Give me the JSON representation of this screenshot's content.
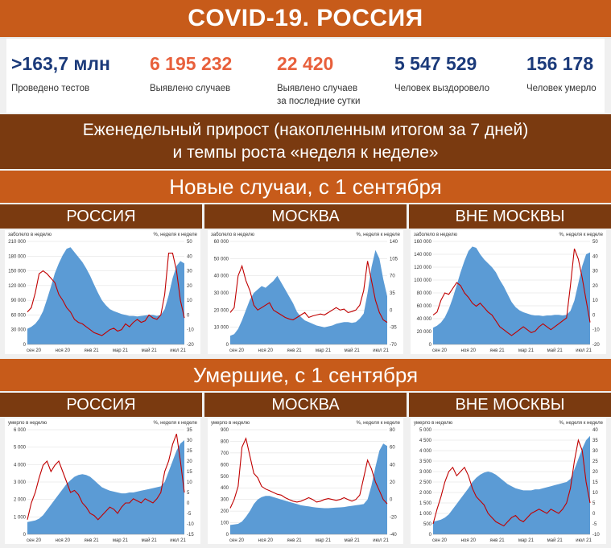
{
  "header": {
    "title": "COVID-19. РОССИЯ"
  },
  "stats": [
    {
      "value": ">163,7 млн",
      "label": "Проведено тестов",
      "color": "#1b3a7a"
    },
    {
      "value": "6 195 232",
      "label": "Выявлено случаев",
      "color": "#e8603c"
    },
    {
      "value": "22 420",
      "label": "Выявлено случаев",
      "label2": "за последние сутки",
      "color": "#e8603c"
    },
    {
      "value": "5 547 529",
      "label": "Человек выздоровело",
      "color": "#1b3a7a"
    },
    {
      "value": "156 178",
      "label": "Человек умерло",
      "color": "#1b3a7a"
    }
  ],
  "subtitle": {
    "line1": "Еженедельный прирост (накопленным итогом за 7 дней)",
    "line2": "и темпы роста «неделя к неделе»"
  },
  "sections": {
    "new_cases": "Новые случаи, с 1 сентября",
    "deaths": "Умершие, с 1 сентября"
  },
  "regions": [
    "РОССИЯ",
    "МОСКВА",
    "ВНЕ МОСКВЫ"
  ],
  "colors": {
    "area": "#5b9bd5",
    "line": "#c00000",
    "band_orange": "#c75b1a",
    "band_brown": "#7a3a10"
  },
  "chart_data": [
    {
      "type": "area",
      "section": "new_cases",
      "region": "РОССИЯ",
      "left_label": "заболело в неделю",
      "right_label": "%, неделя к неделе",
      "x_labels": [
        "сен 20",
        "ноя 20",
        "янв 21",
        "мар 21",
        "май 21",
        "июл 21"
      ],
      "left_ticks": [
        "0",
        "30 000",
        "60 000",
        "90 000",
        "120 000",
        "150 000",
        "180 000",
        "210 000"
      ],
      "right_ticks": [
        "-20",
        "-10",
        "0",
        "10",
        "20",
        "30",
        "40",
        "50"
      ],
      "ylim_left": [
        0,
        210000
      ],
      "ylim_right": [
        -20,
        50
      ],
      "series": [
        {
          "name": "заболело в неделю",
          "axis": "left",
          "values": [
            32000,
            36000,
            42000,
            52000,
            68000,
            92000,
            118000,
            145000,
            165000,
            182000,
            195000,
            198000,
            188000,
            178000,
            168000,
            155000,
            140000,
            122000,
            105000,
            90000,
            80000,
            72000,
            68000,
            65000,
            62000,
            60000,
            58000,
            58000,
            57000,
            58000,
            59000,
            60000,
            60000,
            58000,
            60000,
            72000,
            100000,
            135000,
            160000,
            170000,
            165000
          ]
        },
        {
          "name": "%, неделя к неделе",
          "axis": "right",
          "values": [
            2,
            5,
            15,
            28,
            30,
            28,
            25,
            22,
            14,
            10,
            5,
            2,
            -3,
            -5,
            -6,
            -8,
            -10,
            -12,
            -13,
            -14,
            -12,
            -10,
            -9,
            -11,
            -10,
            -6,
            -8,
            -5,
            -3,
            -5,
            -4,
            0,
            -2,
            -3,
            0,
            14,
            42,
            42,
            30,
            10,
            -2
          ]
        }
      ]
    },
    {
      "type": "area",
      "section": "new_cases",
      "region": "МОСКВА",
      "left_label": "заболело в неделю",
      "right_label": "%, неделя к неделе",
      "x_labels": [
        "сен 20",
        "ноя 20",
        "янв 21",
        "мар 21",
        "май 21",
        "июл 21"
      ],
      "left_ticks": [
        "0",
        "10 000",
        "20 000",
        "30 000",
        "40 000",
        "50 000",
        "60 000"
      ],
      "right_ticks": [
        "-70",
        "-35",
        "0",
        "35",
        "70",
        "105",
        "140"
      ],
      "ylim_left": [
        0,
        60000
      ],
      "ylim_right": [
        -70,
        140
      ],
      "series": [
        {
          "name": "заболело в неделю",
          "axis": "left",
          "values": [
            5000,
            6000,
            9000,
            14000,
            20000,
            26000,
            30000,
            32000,
            34000,
            33000,
            35000,
            37000,
            40000,
            36000,
            32000,
            28000,
            24000,
            19000,
            16000,
            14000,
            13000,
            12000,
            11000,
            10500,
            10000,
            10500,
            11000,
            12000,
            12500,
            13000,
            13000,
            12500,
            13000,
            15000,
            18000,
            30000,
            45000,
            55000,
            50000,
            38000,
            28000
          ]
        },
        {
          "name": "%, неделя к неделе",
          "axis": "right",
          "values": [
            -5,
            5,
            70,
            90,
            60,
            40,
            10,
            0,
            5,
            10,
            15,
            0,
            -5,
            -10,
            -15,
            -18,
            -20,
            -15,
            -10,
            -5,
            -15,
            -12,
            -10,
            -8,
            -10,
            -5,
            0,
            5,
            0,
            2,
            -5,
            -3,
            0,
            10,
            40,
            100,
            60,
            20,
            -5,
            -20,
            -25
          ]
        }
      ]
    },
    {
      "type": "area",
      "section": "new_cases",
      "region": "ВНЕ МОСКВЫ",
      "left_label": "заболело в неделю",
      "right_label": "%, неделя к неделе",
      "x_labels": [
        "сен 20",
        "ноя 20",
        "янв 21",
        "мар 21",
        "май 21",
        "июл 21"
      ],
      "left_ticks": [
        "0",
        "20 000",
        "40 000",
        "60 000",
        "80 000",
        "100 000",
        "120 000",
        "140 000",
        "160 000"
      ],
      "right_ticks": [
        "-20",
        "-10",
        "0",
        "10",
        "20",
        "30",
        "40",
        "50"
      ],
      "ylim_left": [
        0,
        160000
      ],
      "ylim_right": [
        -20,
        50
      ],
      "series": [
        {
          "name": "заболело в неделю",
          "axis": "left",
          "values": [
            26000,
            29000,
            34000,
            42000,
            55000,
            72000,
            92000,
            112000,
            130000,
            145000,
            152000,
            150000,
            140000,
            132000,
            126000,
            120000,
            112000,
            100000,
            90000,
            78000,
            66000,
            58000,
            53000,
            50000,
            48000,
            46000,
            45000,
            45000,
            44000,
            45000,
            45000,
            46000,
            46000,
            45000,
            46000,
            52000,
            68000,
            95000,
            122000,
            140000,
            143000
          ]
        },
        {
          "name": "%, неделя к неделе",
          "axis": "right",
          "values": [
            0,
            2,
            10,
            15,
            14,
            18,
            22,
            20,
            15,
            12,
            8,
            6,
            8,
            5,
            2,
            0,
            -4,
            -8,
            -10,
            -12,
            -14,
            -12,
            -10,
            -8,
            -10,
            -12,
            -11,
            -8,
            -6,
            -8,
            -10,
            -8,
            -6,
            -4,
            -2,
            20,
            45,
            38,
            25,
            10,
            -5
          ]
        }
      ]
    },
    {
      "type": "area",
      "section": "deaths",
      "region": "РОССИЯ",
      "left_label": "умерло в неделю",
      "right_label": "%, неделя к неделе",
      "x_labels": [
        "сен 20",
        "ноя 20",
        "янв 21",
        "мар 21",
        "май 21",
        "июл 21"
      ],
      "left_ticks": [
        "0",
        "1 000",
        "2 000",
        "3 000",
        "4 000",
        "5 000",
        "6 000"
      ],
      "right_ticks": [
        "-15",
        "-10",
        "-5",
        "0",
        "5",
        "10",
        "15",
        "20",
        "25",
        "30",
        "35"
      ],
      "ylim_left": [
        0,
        6000
      ],
      "ylim_right": [
        -15,
        35
      ],
      "series": [
        {
          "name": "умерло в неделю",
          "axis": "left",
          "values": [
            700,
            750,
            800,
            900,
            1100,
            1400,
            1700,
            2000,
            2300,
            2600,
            2900,
            3100,
            3300,
            3400,
            3450,
            3400,
            3300,
            3100,
            2900,
            2700,
            2600,
            2500,
            2450,
            2400,
            2350,
            2350,
            2400,
            2400,
            2450,
            2500,
            2550,
            2600,
            2650,
            2700,
            2750,
            3000,
            3600,
            4200,
            4800,
            5200,
            5400
          ]
        },
        {
          "name": "%, неделя к неделе",
          "axis": "right",
          "values": [
            -8,
            0,
            5,
            12,
            18,
            20,
            15,
            18,
            20,
            15,
            10,
            5,
            6,
            4,
            0,
            -2,
            -5,
            -6,
            -8,
            -6,
            -4,
            -2,
            -3,
            -5,
            -2,
            0,
            0,
            2,
            1,
            0,
            2,
            1,
            0,
            2,
            5,
            15,
            20,
            28,
            33,
            20,
            5
          ]
        }
      ]
    },
    {
      "type": "area",
      "section": "deaths",
      "region": "МОСКВА",
      "left_label": "умерло в неделю",
      "right_label": "%, неделя к неделе",
      "x_labels": [
        "сен 20",
        "ноя 20",
        "янв 21",
        "мар 21",
        "май 21",
        "июл 21"
      ],
      "left_ticks": [
        "0",
        "100",
        "200",
        "300",
        "400",
        "500",
        "600",
        "700",
        "800",
        "900"
      ],
      "right_ticks": [
        "-40",
        "-20",
        "0",
        "20",
        "40",
        "60",
        "80"
      ],
      "ylim_left": [
        0,
        900
      ],
      "ylim_right": [
        -40,
        80
      ],
      "series": [
        {
          "name": "умерло в неделю",
          "axis": "left",
          "values": [
            80,
            85,
            90,
            110,
            150,
            200,
            260,
            300,
            320,
            330,
            330,
            320,
            310,
            300,
            290,
            280,
            270,
            260,
            250,
            245,
            240,
            235,
            230,
            228,
            225,
            225,
            228,
            230,
            232,
            235,
            240,
            245,
            250,
            255,
            260,
            300,
            420,
            580,
            720,
            780,
            760
          ]
        },
        {
          "name": "%, неделя к неделе",
          "axis": "right",
          "values": [
            -10,
            0,
            15,
            60,
            70,
            50,
            30,
            25,
            15,
            12,
            10,
            8,
            6,
            5,
            2,
            0,
            -2,
            -3,
            -2,
            0,
            2,
            0,
            -3,
            -2,
            0,
            1,
            0,
            -1,
            0,
            2,
            0,
            -2,
            0,
            5,
            25,
            45,
            35,
            20,
            10,
            0,
            -5
          ]
        }
      ]
    },
    {
      "type": "area",
      "section": "deaths",
      "region": "ВНЕ МОСКВЫ",
      "left_label": "умерло в неделю",
      "right_label": "%, неделя к неделе",
      "x_labels": [
        "сен 20",
        "ноя 20",
        "янв 21",
        "мар 21",
        "май 21",
        "июл 21"
      ],
      "left_ticks": [
        "0",
        "500",
        "1 000",
        "1 500",
        "2 000",
        "2 500",
        "3 000",
        "3 500",
        "4 000",
        "4 500",
        "5 000"
      ],
      "right_ticks": [
        "-10",
        "-5",
        "0",
        "5",
        "10",
        "15",
        "20",
        "25",
        "30",
        "35",
        "40"
      ],
      "ylim_left": [
        0,
        5000
      ],
      "ylim_right": [
        -10,
        40
      ],
      "series": [
        {
          "name": "умерло в неделю",
          "axis": "left",
          "values": [
            600,
            650,
            700,
            800,
            950,
            1200,
            1450,
            1700,
            1950,
            2200,
            2500,
            2700,
            2850,
            2950,
            3000,
            2950,
            2850,
            2700,
            2550,
            2400,
            2300,
            2200,
            2150,
            2100,
            2100,
            2100,
            2150,
            2150,
            2200,
            2250,
            2300,
            2350,
            2400,
            2450,
            2500,
            2650,
            3100,
            3600,
            4100,
            4500,
            4700
          ]
        },
        {
          "name": "%, неделя к неделе",
          "axis": "right",
          "values": [
            -5,
            2,
            8,
            15,
            20,
            22,
            18,
            20,
            22,
            18,
            12,
            8,
            6,
            4,
            0,
            -2,
            -4,
            -5,
            -6,
            -4,
            -2,
            -1,
            -3,
            -4,
            -2,
            0,
            1,
            2,
            1,
            0,
            2,
            1,
            0,
            2,
            5,
            12,
            25,
            35,
            30,
            15,
            5
          ]
        }
      ]
    }
  ]
}
